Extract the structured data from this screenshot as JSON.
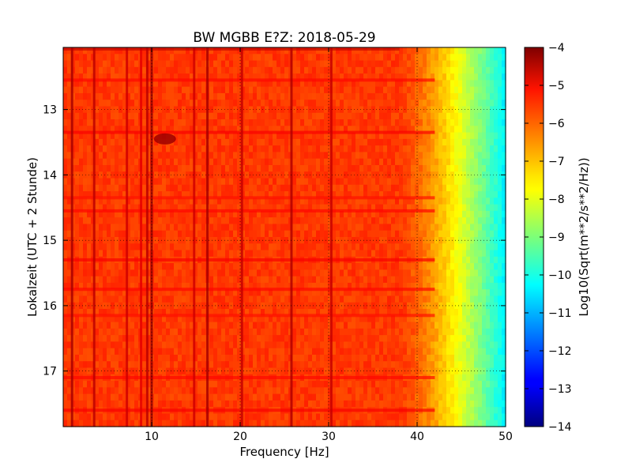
{
  "chart_data": {
    "type": "heatmap",
    "title": "BW MGBB E?Z: 2018-05-29",
    "xlabel": "Frequency [Hz]",
    "ylabel": "Lokalzeit (UTC + 2 Stunde)",
    "xlim": [
      0,
      50
    ],
    "ylim": [
      17.85,
      12.05
    ],
    "xticks": [
      10,
      20,
      30,
      40,
      50
    ],
    "yticks": [
      13,
      14,
      15,
      16,
      17
    ],
    "grid": true,
    "grid_style": "dotted",
    "colormap": "jet",
    "colorbar": {
      "label": "Log10(Sqrt(m**2/s**2/Hz))",
      "range": [
        -14,
        -4
      ],
      "ticks": [
        -4,
        -5,
        -6,
        -7,
        -8,
        -9,
        -10,
        -11,
        -12,
        -13,
        -14
      ]
    },
    "background_level": -5.8,
    "rolloff": {
      "start_hz": 38,
      "end_hz": 50,
      "level_at_50hz": -10.4
    },
    "vertical_lines": [
      {
        "freq_hz": 1.0,
        "level": -4.4
      },
      {
        "freq_hz": 3.5,
        "level": -4.6
      },
      {
        "freq_hz": 7.2,
        "level": -4.8
      },
      {
        "freq_hz": 8.8,
        "level": -5.0
      },
      {
        "freq_hz": 9.5,
        "level": -4.6
      },
      {
        "freq_hz": 10.0,
        "level": -4.3
      },
      {
        "freq_hz": 14.8,
        "level": -4.8
      },
      {
        "freq_hz": 16.3,
        "level": -4.4
      },
      {
        "freq_hz": 20.2,
        "level": -4.7
      },
      {
        "freq_hz": 25.8,
        "level": -4.5
      },
      {
        "freq_hz": 30.3,
        "level": -4.7
      }
    ],
    "horizontal_bands": [
      {
        "time": 12.55,
        "level": -5.3
      },
      {
        "time": 13.35,
        "level": -5.2
      },
      {
        "time": 14.35,
        "level": -5.4
      },
      {
        "time": 14.55,
        "level": -5.3
      },
      {
        "time": 15.3,
        "level": -5.2
      },
      {
        "time": 15.75,
        "level": -5.3
      },
      {
        "time": 16.15,
        "level": -5.4
      },
      {
        "time": 17.1,
        "level": -5.3
      },
      {
        "time": 17.6,
        "level": -5.2
      }
    ],
    "hotspots": [
      {
        "freq_hz": 11.5,
        "time": 13.45,
        "level": -4.3
      }
    ]
  }
}
